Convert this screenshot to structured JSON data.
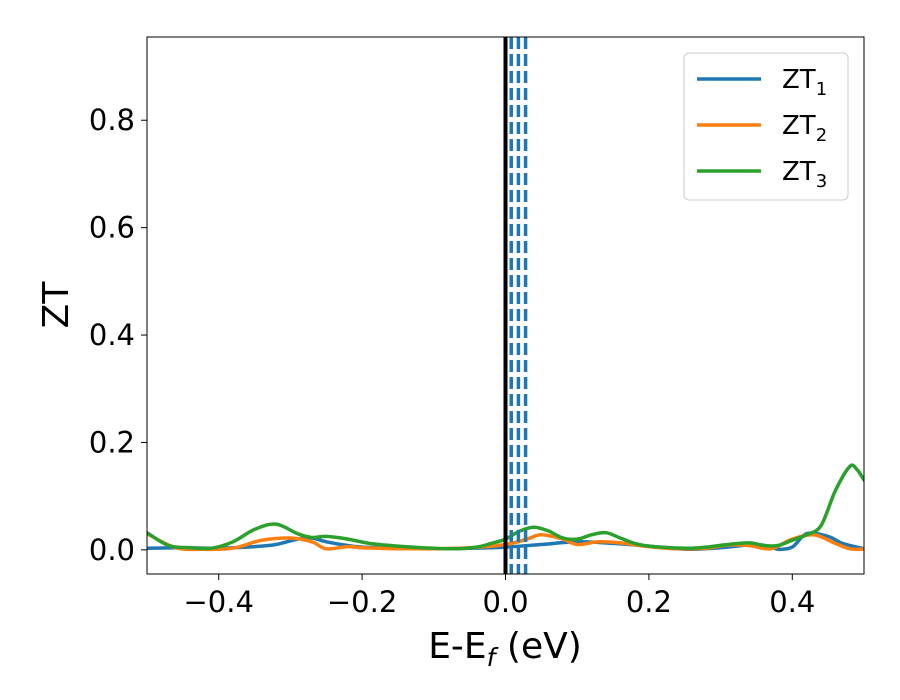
{
  "chart_data": {
    "type": "line",
    "xlabel": "E-E",
    "xlabel_sub": "f",
    "xlabel_unit": " (eV)",
    "ylabel": "ZT",
    "xlim": [
      -0.5,
      0.5
    ],
    "ylim": [
      -0.045,
      0.955
    ],
    "xticks": [
      -0.4,
      -0.2,
      0.0,
      0.2,
      0.4
    ],
    "xtick_labels": [
      "−0.4",
      "−0.2",
      "0.0",
      "0.2",
      "0.4"
    ],
    "yticks": [
      0.0,
      0.2,
      0.4,
      0.6,
      0.8
    ],
    "ytick_labels": [
      "0.0",
      "0.2",
      "0.4",
      "0.6",
      "0.8"
    ],
    "grid": false,
    "legend_position": "top-right",
    "reference_lines": {
      "solid": {
        "x": 0.0,
        "color": "#000000"
      },
      "dashed": {
        "x": [
          0.008,
          0.018,
          0.028
        ],
        "color": "#1f77b4"
      }
    },
    "series": [
      {
        "name": "ZT",
        "name_sub": "1",
        "color": "#1f77b4",
        "x": [
          -0.5,
          -0.45,
          -0.4,
          -0.35,
          -0.32,
          -0.29,
          -0.27,
          -0.25,
          -0.22,
          -0.2,
          -0.15,
          -0.1,
          -0.05,
          0.0,
          0.05,
          0.1,
          0.15,
          0.2,
          0.23,
          0.26,
          0.3,
          0.33,
          0.35,
          0.37,
          0.38,
          0.4,
          0.42,
          0.45,
          0.47,
          0.5
        ],
        "y": [
          0.003,
          0.004,
          0.003,
          0.006,
          0.01,
          0.02,
          0.022,
          0.015,
          0.008,
          0.005,
          0.003,
          0.002,
          0.003,
          0.005,
          0.01,
          0.015,
          0.012,
          0.007,
          0.003,
          0.001,
          0.004,
          0.008,
          0.01,
          0.006,
          0.001,
          0.005,
          0.03,
          0.025,
          0.012,
          0.002
        ]
      },
      {
        "name": "ZT",
        "name_sub": "2",
        "color": "#ff7f0e",
        "x": [
          -0.5,
          -0.46,
          -0.42,
          -0.38,
          -0.34,
          -0.3,
          -0.27,
          -0.25,
          -0.22,
          -0.2,
          -0.15,
          -0.1,
          -0.05,
          0.0,
          0.03,
          0.05,
          0.08,
          0.1,
          0.13,
          0.16,
          0.2,
          0.24,
          0.28,
          0.31,
          0.34,
          0.37,
          0.4,
          0.43,
          0.46,
          0.48,
          0.5
        ],
        "y": [
          0.03,
          0.004,
          0.001,
          0.003,
          0.018,
          0.022,
          0.015,
          0.002,
          0.006,
          0.004,
          0.002,
          0.002,
          0.004,
          0.01,
          0.02,
          0.028,
          0.02,
          0.01,
          0.015,
          0.013,
          0.006,
          0.002,
          0.003,
          0.009,
          0.008,
          0.002,
          0.02,
          0.028,
          0.012,
          0.002,
          0.001
        ]
      },
      {
        "name": "ZT",
        "name_sub": "3",
        "color": "#2ca02c",
        "x": [
          -0.5,
          -0.47,
          -0.44,
          -0.41,
          -0.38,
          -0.35,
          -0.32,
          -0.29,
          -0.27,
          -0.25,
          -0.22,
          -0.19,
          -0.16,
          -0.13,
          -0.1,
          -0.07,
          -0.04,
          -0.02,
          0.0,
          0.02,
          0.04,
          0.06,
          0.08,
          0.1,
          0.12,
          0.14,
          0.16,
          0.18,
          0.2,
          0.23,
          0.26,
          0.28,
          0.31,
          0.34,
          0.36,
          0.38,
          0.4,
          0.42,
          0.44,
          0.46,
          0.48,
          0.49,
          0.5
        ],
        "y": [
          0.032,
          0.008,
          0.004,
          0.003,
          0.015,
          0.038,
          0.048,
          0.03,
          0.023,
          0.025,
          0.02,
          0.012,
          0.008,
          0.005,
          0.003,
          0.002,
          0.005,
          0.012,
          0.02,
          0.035,
          0.042,
          0.035,
          0.022,
          0.02,
          0.028,
          0.032,
          0.022,
          0.012,
          0.007,
          0.004,
          0.003,
          0.005,
          0.01,
          0.013,
          0.008,
          0.008,
          0.018,
          0.028,
          0.045,
          0.11,
          0.155,
          0.15,
          0.13
        ]
      }
    ]
  }
}
